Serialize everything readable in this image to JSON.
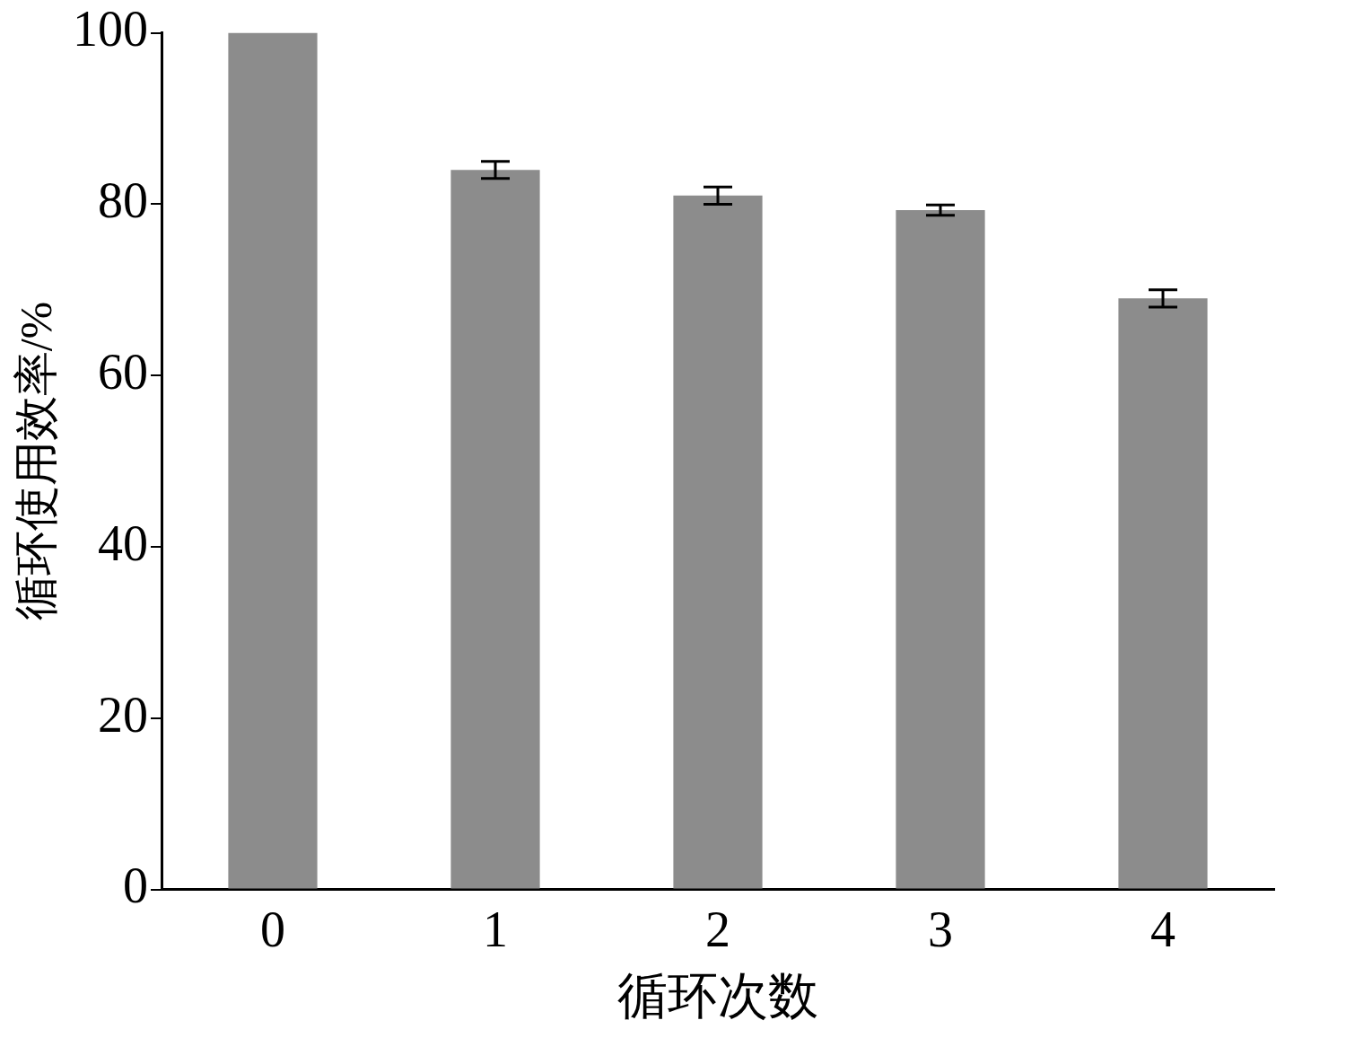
{
  "chart_data": {
    "type": "bar",
    "xlabel": "循环次数",
    "ylabel": "循环使用效率/%",
    "categories": [
      "0",
      "1",
      "2",
      "3",
      "4"
    ],
    "values": [
      100,
      84.0,
      81.0,
      79.3,
      69.0
    ],
    "errors": [
      null,
      1.0,
      1.0,
      0.6,
      1.0
    ],
    "color": "#8c8c8c",
    "ylim": [
      0,
      100
    ],
    "yticks": [
      0,
      20,
      40,
      60,
      80,
      100
    ],
    "grid": false,
    "legend": false
  }
}
